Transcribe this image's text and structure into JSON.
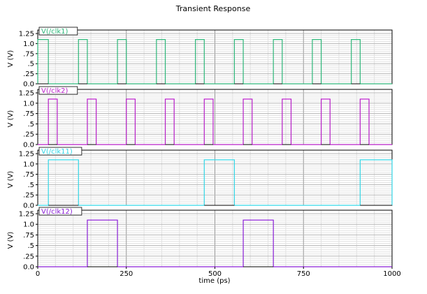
{
  "chart_data": {
    "type": "line",
    "title": "Transient Response",
    "xlabel": "time (ps)",
    "xlim": [
      0,
      1000
    ],
    "x_ticks": [
      0,
      250,
      500,
      750,
      1000
    ],
    "x_tick_labels": [
      "0",
      "250",
      "500",
      "750",
      "1000"
    ],
    "grid": true,
    "panels": [
      {
        "name": "V(/clk1)",
        "color": "#2eb87a",
        "ylabel": "V (V)",
        "ylim": [
          0,
          1.25
        ],
        "y_ticks": [
          0,
          0.25,
          0.5,
          0.75,
          1.0,
          1.25
        ],
        "y_tick_labels": [
          "0.0",
          ".25",
          ".5",
          ".75",
          "1.0",
          "1.25"
        ],
        "high": 1.1,
        "low": 0.0,
        "pulses": [
          [
            0,
            30
          ],
          [
            115,
            140
          ],
          [
            225,
            250
          ],
          [
            335,
            360
          ],
          [
            445,
            470
          ],
          [
            555,
            580
          ],
          [
            665,
            690
          ],
          [
            775,
            800
          ],
          [
            885,
            910
          ]
        ]
      },
      {
        "name": "V(/clk2)",
        "color": "#b81fc8",
        "ylabel": "V (V)",
        "ylim": [
          0,
          1.25
        ],
        "y_ticks": [
          0,
          0.25,
          0.5,
          0.75,
          1.0,
          1.25
        ],
        "y_tick_labels": [
          "0.0",
          ".25",
          ".5",
          ".75",
          "1.0",
          "1.25"
        ],
        "high": 1.1,
        "low": 0.0,
        "pulses": [
          [
            30,
            55
          ],
          [
            140,
            165
          ],
          [
            250,
            275
          ],
          [
            360,
            385
          ],
          [
            470,
            495
          ],
          [
            580,
            605
          ],
          [
            690,
            715
          ],
          [
            800,
            825
          ],
          [
            910,
            935
          ]
        ]
      },
      {
        "name": "V(/clk11)",
        "color": "#33d6e6",
        "ylabel": "V (V)",
        "ylim": [
          0,
          1.25
        ],
        "y_ticks": [
          0,
          0.25,
          0.5,
          0.75,
          1.0,
          1.25
        ],
        "y_tick_labels": [
          "0.0",
          ".25",
          ".5",
          ".75",
          "1.0",
          "1.25"
        ],
        "high": 1.1,
        "low": 0.0,
        "pulses": [
          [
            30,
            115
          ],
          [
            470,
            555
          ],
          [
            910,
            1000
          ]
        ]
      },
      {
        "name": "V(/clk12)",
        "color": "#8a1fd6",
        "ylabel": "V (V)",
        "ylim": [
          0,
          1.25
        ],
        "y_ticks": [
          0,
          0.25,
          0.5,
          0.75,
          1.0,
          1.25
        ],
        "y_tick_labels": [
          "0.0",
          ".25",
          ".5",
          ".75",
          "1.0",
          "1.25"
        ],
        "high": 1.1,
        "low": 0.0,
        "pulses": [
          [
            140,
            225
          ],
          [
            580,
            665
          ]
        ]
      }
    ]
  }
}
